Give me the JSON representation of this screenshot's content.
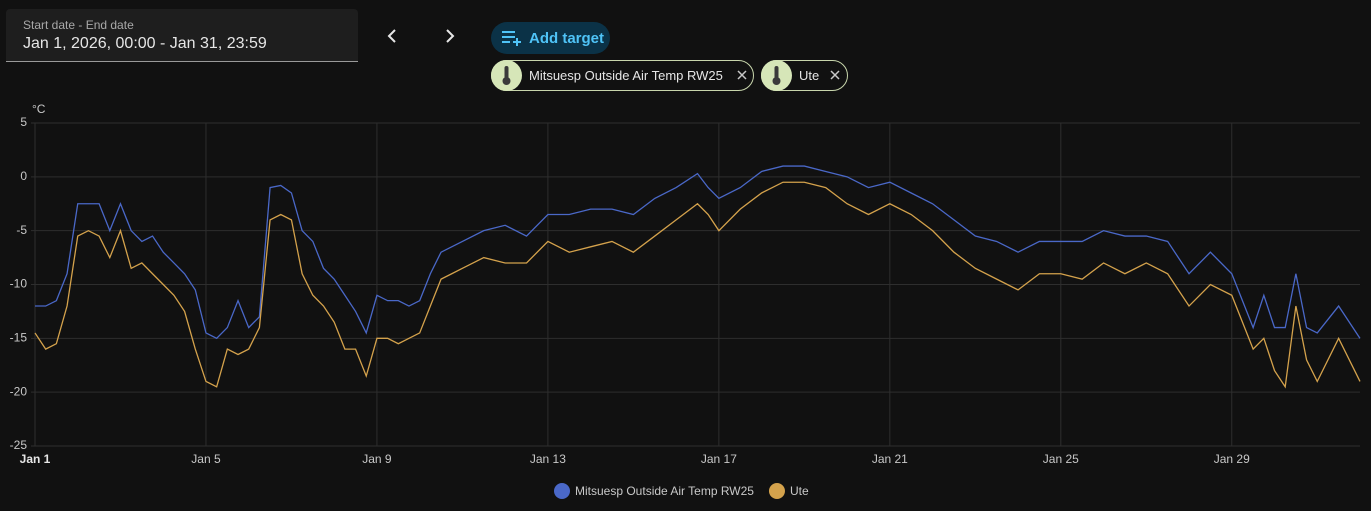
{
  "header": {
    "date_label": "Start date - End date",
    "date_value": "Jan 1, 2026, 00:00 - Jan 31, 23:59",
    "add_target": "Add target",
    "targets": [
      "Mitsuesp Outside Air Temp RW25",
      "Ute"
    ]
  },
  "chart_data": {
    "type": "line",
    "y_label": "°C",
    "x": [
      1,
      1.25,
      1.5,
      1.75,
      2,
      2.25,
      2.5,
      2.75,
      3,
      3.25,
      3.5,
      3.75,
      4,
      4.25,
      4.5,
      4.75,
      5,
      5.25,
      5.5,
      5.75,
      6,
      6.25,
      6.5,
      6.75,
      7,
      7.25,
      7.5,
      7.75,
      8,
      8.25,
      8.5,
      8.75,
      9,
      9.25,
      9.5,
      9.75,
      10,
      10.25,
      10.5,
      10.75,
      11,
      11.5,
      12,
      12.5,
      13,
      13.5,
      14,
      14.5,
      15,
      15.5,
      16,
      16.5,
      16.75,
      17,
      17.5,
      18,
      18.5,
      19,
      19.5,
      20,
      20.5,
      21,
      21.5,
      22,
      22.5,
      23,
      23.5,
      24,
      24.5,
      25,
      25.5,
      26,
      26.5,
      27,
      27.5,
      28,
      28.5,
      29,
      29.5,
      29.75,
      30,
      30.25,
      30.5,
      30.75,
      31,
      31.5,
      32
    ],
    "series": [
      {
        "name": "Mitsuesp Outside Air Temp RW25",
        "color": "#4a68c8",
        "values": [
          -12,
          -12,
          -11.5,
          -9,
          -2.5,
          -2.5,
          -2.5,
          -5,
          -2.5,
          -5,
          -6,
          -5.5,
          -7,
          -8,
          -9,
          -10.5,
          -14.5,
          -15,
          -14,
          -11.5,
          -14,
          -13,
          -1,
          -0.8,
          -1.5,
          -5,
          -6,
          -8.5,
          -9.5,
          -11,
          -12.5,
          -14.5,
          -11,
          -11.5,
          -11.5,
          -12,
          -11.5,
          -9,
          -7,
          -6.5,
          -6,
          -5,
          -4.5,
          -5.5,
          -3.5,
          -3.5,
          -3,
          -3,
          -3.5,
          -2,
          -1,
          0.3,
          -1,
          -2,
          -1,
          0.5,
          1,
          1,
          0.5,
          0,
          -1,
          -0.5,
          -1.5,
          -2.5,
          -4,
          -5.5,
          -6,
          -7,
          -6,
          -6,
          -6,
          -5,
          -5.5,
          -5.5,
          -6,
          -9,
          -7,
          -9,
          -14,
          -11,
          -14,
          -14,
          -9,
          -14,
          -14.5,
          -12,
          -15
        ]
      },
      {
        "name": "Ute",
        "color": "#d4a24c",
        "values": [
          -14.5,
          -16,
          -15.5,
          -12,
          -5.5,
          -5,
          -5.5,
          -7.5,
          -5,
          -8.5,
          -8,
          -9,
          -10,
          -11,
          -12.5,
          -16,
          -19,
          -19.5,
          -16,
          -16.5,
          -16,
          -14,
          -4,
          -3.5,
          -4,
          -9,
          -11,
          -12,
          -13.5,
          -16,
          -16,
          -18.5,
          -15,
          -15,
          -15.5,
          -15,
          -14.5,
          -12,
          -9.5,
          -9,
          -8.5,
          -7.5,
          -8,
          -8,
          -6,
          -7,
          -6.5,
          -6,
          -7,
          -5.5,
          -4,
          -2.5,
          -3.5,
          -5,
          -3,
          -1.5,
          -0.5,
          -0.5,
          -1,
          -2.5,
          -3.5,
          -2.5,
          -3.5,
          -5,
          -7,
          -8.5,
          -9.5,
          -10.5,
          -9,
          -9,
          -9.5,
          -8,
          -9,
          -8,
          -9,
          -12,
          -10,
          -11,
          -16,
          -15,
          -18,
          -19.5,
          -12,
          -17,
          -19,
          -15,
          -19
        ]
      }
    ],
    "xlim": [
      1,
      32
    ],
    "xticks": [
      {
        "value": 1,
        "label": "Jan 1"
      },
      {
        "value": 5,
        "label": "Jan 5"
      },
      {
        "value": 9,
        "label": "Jan 9"
      },
      {
        "value": 13,
        "label": "Jan 13"
      },
      {
        "value": 17,
        "label": "Jan 17"
      },
      {
        "value": 21,
        "label": "Jan 21"
      },
      {
        "value": 25,
        "label": "Jan 25"
      },
      {
        "value": 29,
        "label": "Jan 29"
      }
    ],
    "ylim": [
      -25,
      5
    ],
    "yticks": [
      5,
      0,
      -5,
      -10,
      -15,
      -20,
      -25
    ],
    "grid": true
  }
}
